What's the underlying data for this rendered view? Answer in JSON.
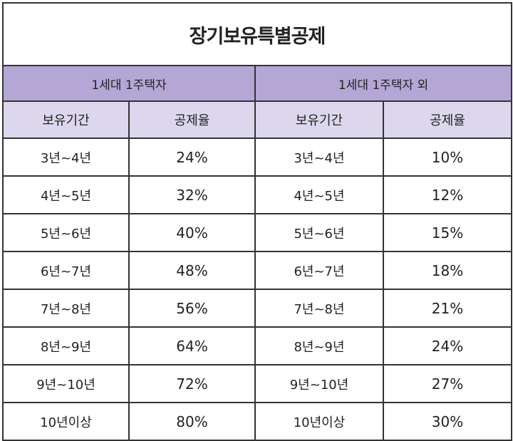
{
  "title": "장기보유특별공제",
  "groups": [
    "1세대 1주택자",
    "1세대 1주택자 외"
  ],
  "columns": [
    "보유기간",
    "공제율",
    "보유기간",
    "공제율"
  ],
  "rows": [
    {
      "period_a": "3년~4년",
      "rate_a": "24%",
      "period_b": "3년~4년",
      "rate_b": "10%"
    },
    {
      "period_a": "4년~5년",
      "rate_a": "32%",
      "period_b": "4년~5년",
      "rate_b": "12%"
    },
    {
      "period_a": "5년~6년",
      "rate_a": "40%",
      "period_b": "5년~6년",
      "rate_b": "15%"
    },
    {
      "period_a": "6년~7년",
      "rate_a": "48%",
      "period_b": "6년~7년",
      "rate_b": "18%"
    },
    {
      "period_a": "7년~8년",
      "rate_a": "56%",
      "period_b": "7년~8년",
      "rate_b": "21%"
    },
    {
      "period_a": "8년~9년",
      "rate_a": "64%",
      "period_b": "8년~9년",
      "rate_b": "24%"
    },
    {
      "period_a": "9년~10년",
      "rate_a": "72%",
      "period_b": "9년~10년",
      "rate_b": "27%"
    },
    {
      "period_a": "10년이상",
      "rate_a": "80%",
      "period_b": "10년이상",
      "rate_b": "30%"
    }
  ],
  "colors": {
    "group_header": "#b4a7d6",
    "column_header": "#dcd7ec",
    "border": "#333333"
  }
}
